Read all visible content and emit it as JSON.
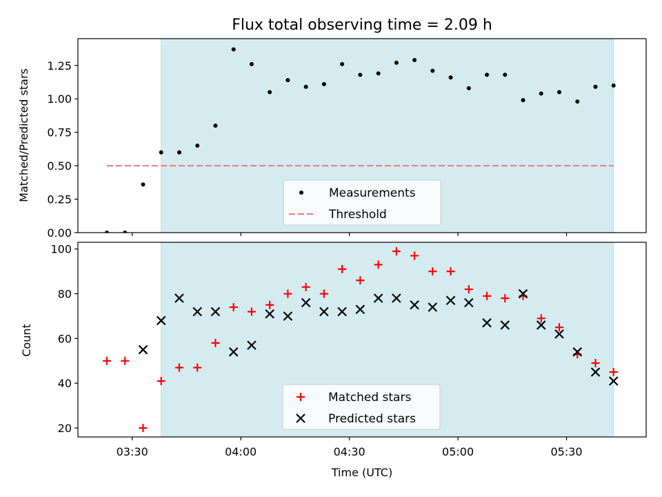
{
  "figure": {
    "title": "Flux total observing time = 2.09 h",
    "xlabel": "Time (UTC)",
    "xticks": [
      "03:30",
      "04:00",
      "04:30",
      "05:00",
      "05:30"
    ],
    "shade_color": "#d4ebf0"
  },
  "chart_data": [
    {
      "type": "scatter",
      "ylabel": "Matched/Predicted stars",
      "ylim": [
        0,
        1.45
      ],
      "yticks": [
        "0.00",
        "0.25",
        "0.50",
        "0.75",
        "1.00",
        "1.25"
      ],
      "xlim": [
        "03:15",
        "05:52"
      ],
      "highlight_span": [
        "03:38",
        "05:43"
      ],
      "legend_position": "lower center",
      "series": [
        {
          "name": "Measurements",
          "marker": "dot",
          "color": "#000000",
          "x": [
            "03:23",
            "03:28",
            "03:33",
            "03:38",
            "03:43",
            "03:48",
            "03:53",
            "03:58",
            "04:03",
            "04:08",
            "04:13",
            "04:18",
            "04:23",
            "04:28",
            "04:33",
            "04:38",
            "04:43",
            "04:48",
            "04:53",
            "04:58",
            "05:03",
            "05:08",
            "05:13",
            "05:18",
            "05:23",
            "05:28",
            "05:33",
            "05:38",
            "05:43"
          ],
          "y": [
            0.0,
            0.0,
            0.36,
            0.6,
            0.6,
            0.65,
            0.8,
            1.37,
            1.26,
            1.05,
            1.14,
            1.09,
            1.11,
            1.26,
            1.18,
            1.19,
            1.27,
            1.29,
            1.21,
            1.16,
            1.08,
            1.18,
            1.18,
            0.99,
            1.04,
            1.05,
            0.98,
            1.09,
            1.1
          ]
        },
        {
          "name": "Threshold",
          "style": "dashed",
          "color": "#f27878",
          "x": [
            "03:23",
            "05:43"
          ],
          "y": [
            0.5,
            0.5
          ]
        }
      ]
    },
    {
      "type": "scatter",
      "ylabel": "Count",
      "ylim": [
        16,
        103
      ],
      "yticks": [
        "20",
        "40",
        "60",
        "80",
        "100"
      ],
      "xlim": [
        "03:15",
        "05:52"
      ],
      "highlight_span": [
        "03:38",
        "05:43"
      ],
      "legend_position": "lower center",
      "series": [
        {
          "name": "Matched stars",
          "marker": "plus",
          "color": "#ff0000",
          "x": [
            "03:23",
            "03:28",
            "03:33",
            "03:38",
            "03:43",
            "03:48",
            "03:53",
            "03:58",
            "04:03",
            "04:08",
            "04:13",
            "04:18",
            "04:23",
            "04:28",
            "04:33",
            "04:38",
            "04:43",
            "04:48",
            "04:53",
            "04:58",
            "05:03",
            "05:08",
            "05:13",
            "05:18",
            "05:23",
            "05:28",
            "05:33",
            "05:38",
            "05:43"
          ],
          "y": [
            50,
            50,
            20,
            41,
            47,
            47,
            58,
            74,
            72,
            75,
            80,
            83,
            80,
            91,
            86,
            93,
            99,
            97,
            90,
            90,
            82,
            79,
            78,
            79,
            69,
            65,
            53,
            49,
            45
          ]
        },
        {
          "name": "Predicted stars",
          "marker": "x",
          "color": "#000000",
          "x": [
            "03:33",
            "03:38",
            "03:43",
            "03:48",
            "03:53",
            "03:58",
            "04:03",
            "04:08",
            "04:13",
            "04:18",
            "04:23",
            "04:28",
            "04:33",
            "04:38",
            "04:43",
            "04:48",
            "04:53",
            "04:58",
            "05:03",
            "05:08",
            "05:13",
            "05:18",
            "05:23",
            "05:28",
            "05:33",
            "05:38",
            "05:43"
          ],
          "y": [
            55,
            68,
            78,
            72,
            72,
            54,
            57,
            71,
            70,
            76,
            72,
            72,
            73,
            78,
            78,
            75,
            74,
            77,
            76,
            67,
            66,
            80,
            66,
            62,
            54,
            45,
            41
          ]
        }
      ]
    }
  ]
}
